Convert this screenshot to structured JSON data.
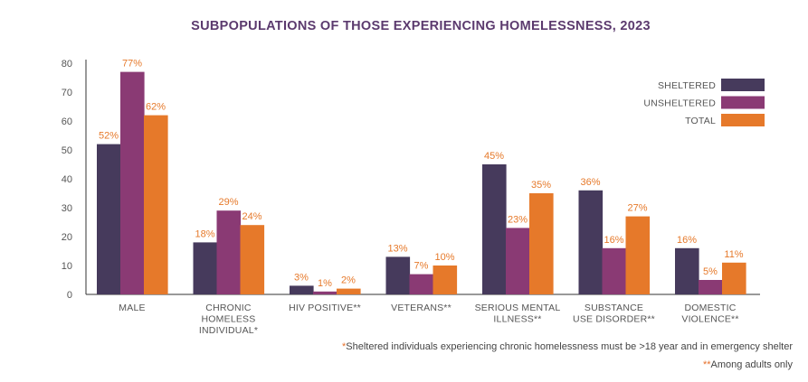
{
  "chart_data": {
    "type": "bar",
    "title": "SUBPOPULATIONS OF THOSE EXPERIENCING HOMELESSNESS, 2023",
    "categories": [
      [
        "MALE"
      ],
      [
        "CHRONIC",
        "HOMELESS",
        "INDIVIDUAL*"
      ],
      [
        "HIV POSITIVE**"
      ],
      [
        "VETERANS**"
      ],
      [
        "SERIOUS MENTAL",
        "ILLNESS**"
      ],
      [
        "SUBSTANCE",
        "USE DISORDER**"
      ],
      [
        "DOMESTIC",
        "VIOLENCE**"
      ]
    ],
    "series": [
      {
        "name": "SHELTERED",
        "color": "#463a5c",
        "values": [
          52,
          18,
          3,
          13,
          45,
          36,
          16
        ],
        "labels": [
          "52%",
          "18%",
          "3%",
          "13%",
          "45%",
          "36%",
          "16%"
        ]
      },
      {
        "name": "UNSHELTERED",
        "color": "#8a3a74",
        "values": [
          77,
          29,
          1,
          7,
          23,
          16,
          5
        ],
        "labels": [
          "77%",
          "29%",
          "1%",
          "7%",
          "23%",
          "16%",
          "5%"
        ]
      },
      {
        "name": "TOTAL",
        "color": "#e6792a",
        "values": [
          62,
          24,
          2,
          10,
          35,
          27,
          11
        ],
        "labels": [
          "62%",
          "24%",
          "2%",
          "10%",
          "35%",
          "27%",
          "11%"
        ]
      }
    ],
    "yticks": [
      0,
      10,
      20,
      30,
      40,
      50,
      60,
      70,
      80
    ],
    "ylim": [
      0,
      80
    ],
    "grid": false,
    "legend_position": "top-right",
    "title_color": "#5b3a6e",
    "label_color": "#e6792a"
  },
  "footnotes": {
    "note1_mark": "*",
    "note1_text": "Sheltered individuals experiencing chronic homelessness must be >18 year and in emergency shelter",
    "note2_mark": "**",
    "note2_text": "Among adults only"
  }
}
